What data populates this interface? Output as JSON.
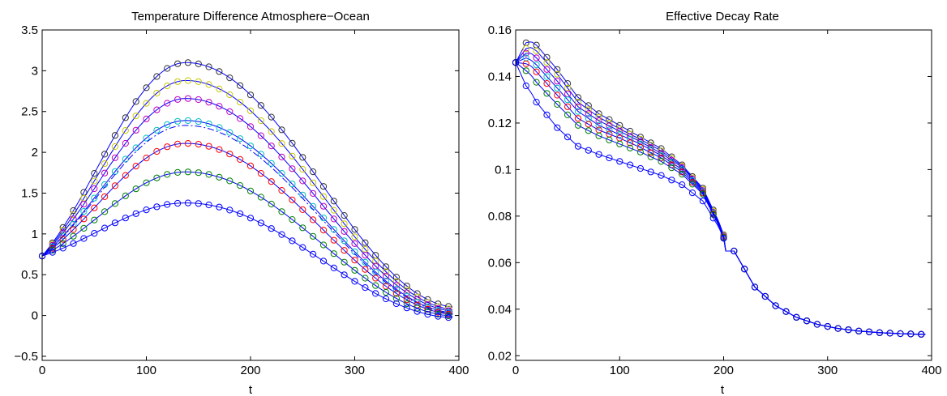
{
  "figure": {
    "panels": [
      {
        "id": "left",
        "title": "Temperature Difference Atmosphere−Ocean",
        "xlabel": "t"
      },
      {
        "id": "right",
        "title": "Effective Decay Rate",
        "xlabel": "t"
      }
    ]
  },
  "chart_data": [
    {
      "type": "line",
      "title": "Temperature Difference Atmosphere−Ocean",
      "xlabel": "t",
      "ylabel": "",
      "xlim": [
        0,
        400
      ],
      "ylim": [
        -0.55,
        3.5
      ],
      "xticks": [
        0,
        100,
        200,
        300,
        400
      ],
      "yticks": [
        -0.5,
        0,
        0.5,
        1,
        1.5,
        2,
        2.5,
        3,
        3.5
      ],
      "xtick_labels": [
        "0",
        "100",
        "200",
        "300",
        "400"
      ],
      "ytick_labels": [
        "−0.5",
        "0",
        "0.5",
        "1",
        "1.5",
        "2",
        "2.5",
        "3",
        "3.5"
      ],
      "grid": false,
      "start_value": 0.73,
      "peak_t": 138,
      "series": [
        {
          "peak": 3.1,
          "end": 0.1,
          "line_color": "#0000ff",
          "marker_color": "#333333",
          "line_style": "solid"
        },
        {
          "peak": 2.88,
          "end": 0.07,
          "line_color": "#0000ff",
          "marker_color": "#c8c800",
          "line_style": "solid"
        },
        {
          "peak": 2.66,
          "end": 0.05,
          "line_color": "#0000ff",
          "marker_color": "#bf00bf",
          "line_style": "solid"
        },
        {
          "peak": 2.39,
          "end": 0.03,
          "line_color": "#0000ff",
          "marker_color": "#00bfbf",
          "line_style": "solid"
        },
        {
          "peak": 2.33,
          "end": 0.02,
          "line_color": "#0000ff",
          "marker_color": null,
          "line_style": "dashdot"
        },
        {
          "peak": 2.11,
          "end": 0.01,
          "line_color": "#0000ff",
          "marker_color": "#ff0000",
          "line_style": "solid"
        },
        {
          "peak": 1.76,
          "end": -0.01,
          "line_color": "#0000ff",
          "marker_color": "#008000",
          "line_style": "solid"
        },
        {
          "peak": 1.38,
          "end": -0.03,
          "line_color": "#0000ff",
          "marker_color": "#0000ff",
          "line_style": "solid"
        }
      ]
    },
    {
      "type": "line",
      "title": "Effective Decay Rate",
      "xlabel": "t",
      "ylabel": "",
      "xlim": [
        0,
        400
      ],
      "ylim": [
        0.018,
        0.16
      ],
      "xticks": [
        0,
        100,
        200,
        300,
        400
      ],
      "yticks": [
        0.02,
        0.04,
        0.06,
        0.08,
        0.1,
        0.12,
        0.14,
        0.16
      ],
      "xtick_labels": [
        "0",
        "100",
        "200",
        "300",
        "400"
      ],
      "ytick_labels": [
        "0.02",
        "0.04",
        "0.06",
        "0.08",
        "0.1",
        "0.12",
        "0.14",
        "0.16"
      ],
      "grid": false,
      "start_value": 0.146,
      "tail_t": [
        210,
        230,
        250,
        270,
        290,
        310,
        330,
        350,
        370,
        390,
        400
      ],
      "tail_y": [
        0.065,
        0.0495,
        0.0415,
        0.0365,
        0.0335,
        0.0317,
        0.0306,
        0.0299,
        0.0295,
        0.0292,
        0.0291
      ],
      "series": [
        {
          "t": [
            0,
            10,
            15,
            20,
            40,
            60,
            80,
            100,
            120,
            140,
            160,
            180,
            195,
            200
          ],
          "y": [
            0.146,
            0.1545,
            0.155,
            0.1535,
            0.143,
            0.131,
            0.124,
            0.119,
            0.114,
            0.109,
            0.102,
            0.092,
            0.078,
            0.072
          ],
          "line_color": "#0000ff",
          "marker_color": "#333333"
        },
        {
          "t": [
            0,
            10,
            15,
            20,
            40,
            60,
            80,
            100,
            120,
            140,
            160,
            180,
            195,
            200
          ],
          "y": [
            0.146,
            0.152,
            0.1525,
            0.151,
            0.141,
            0.129,
            0.1225,
            0.1175,
            0.113,
            0.108,
            0.1015,
            0.0915,
            0.0775,
            0.0718
          ],
          "line_color": "#0000ff",
          "marker_color": "#c8c800"
        },
        {
          "t": [
            0,
            10,
            15,
            20,
            40,
            60,
            80,
            100,
            120,
            140,
            160,
            180,
            195,
            200
          ],
          "y": [
            0.146,
            0.15,
            0.15,
            0.148,
            0.138,
            0.127,
            0.121,
            0.1165,
            0.112,
            0.107,
            0.101,
            0.091,
            0.077,
            0.0715
          ],
          "line_color": "#0000ff",
          "marker_color": "#bf00bf"
        },
        {
          "t": [
            0,
            10,
            15,
            20,
            40,
            60,
            80,
            100,
            120,
            140,
            160,
            180,
            195,
            200
          ],
          "y": [
            0.146,
            0.148,
            0.147,
            0.145,
            0.135,
            0.125,
            0.119,
            0.115,
            0.111,
            0.106,
            0.1,
            0.0905,
            0.0768,
            0.0712
          ],
          "line_color": "#0000ff",
          "marker_color": "#00bfbf"
        },
        {
          "t": [
            0,
            10,
            15,
            20,
            40,
            60,
            80,
            100,
            120,
            140,
            160,
            180,
            195,
            200
          ],
          "y": [
            0.146,
            0.1455,
            0.1445,
            0.142,
            0.132,
            0.122,
            0.117,
            0.1135,
            0.1095,
            0.105,
            0.099,
            0.09,
            0.0765,
            0.071
          ],
          "line_color": "#0000ff",
          "marker_color": "#ff0000"
        },
        {
          "t": [
            0,
            10,
            15,
            20,
            40,
            60,
            80,
            100,
            120,
            140,
            160,
            180,
            195,
            200
          ],
          "y": [
            0.146,
            0.1425,
            0.1405,
            0.1375,
            0.128,
            0.119,
            0.1145,
            0.111,
            0.1075,
            0.1035,
            0.098,
            0.0895,
            0.0762,
            0.0708
          ],
          "line_color": "#0000ff",
          "marker_color": "#008000"
        },
        {
          "t": [
            0,
            10,
            15,
            20,
            40,
            60,
            80,
            100,
            120,
            140,
            160,
            180,
            195,
            200
          ],
          "y": [
            0.146,
            0.136,
            0.133,
            0.129,
            0.118,
            0.11,
            0.1065,
            0.1035,
            0.1005,
            0.0975,
            0.0935,
            0.0865,
            0.0755,
            0.0705
          ],
          "line_color": "#0000ff",
          "marker_color": "#0000ff"
        }
      ]
    }
  ]
}
